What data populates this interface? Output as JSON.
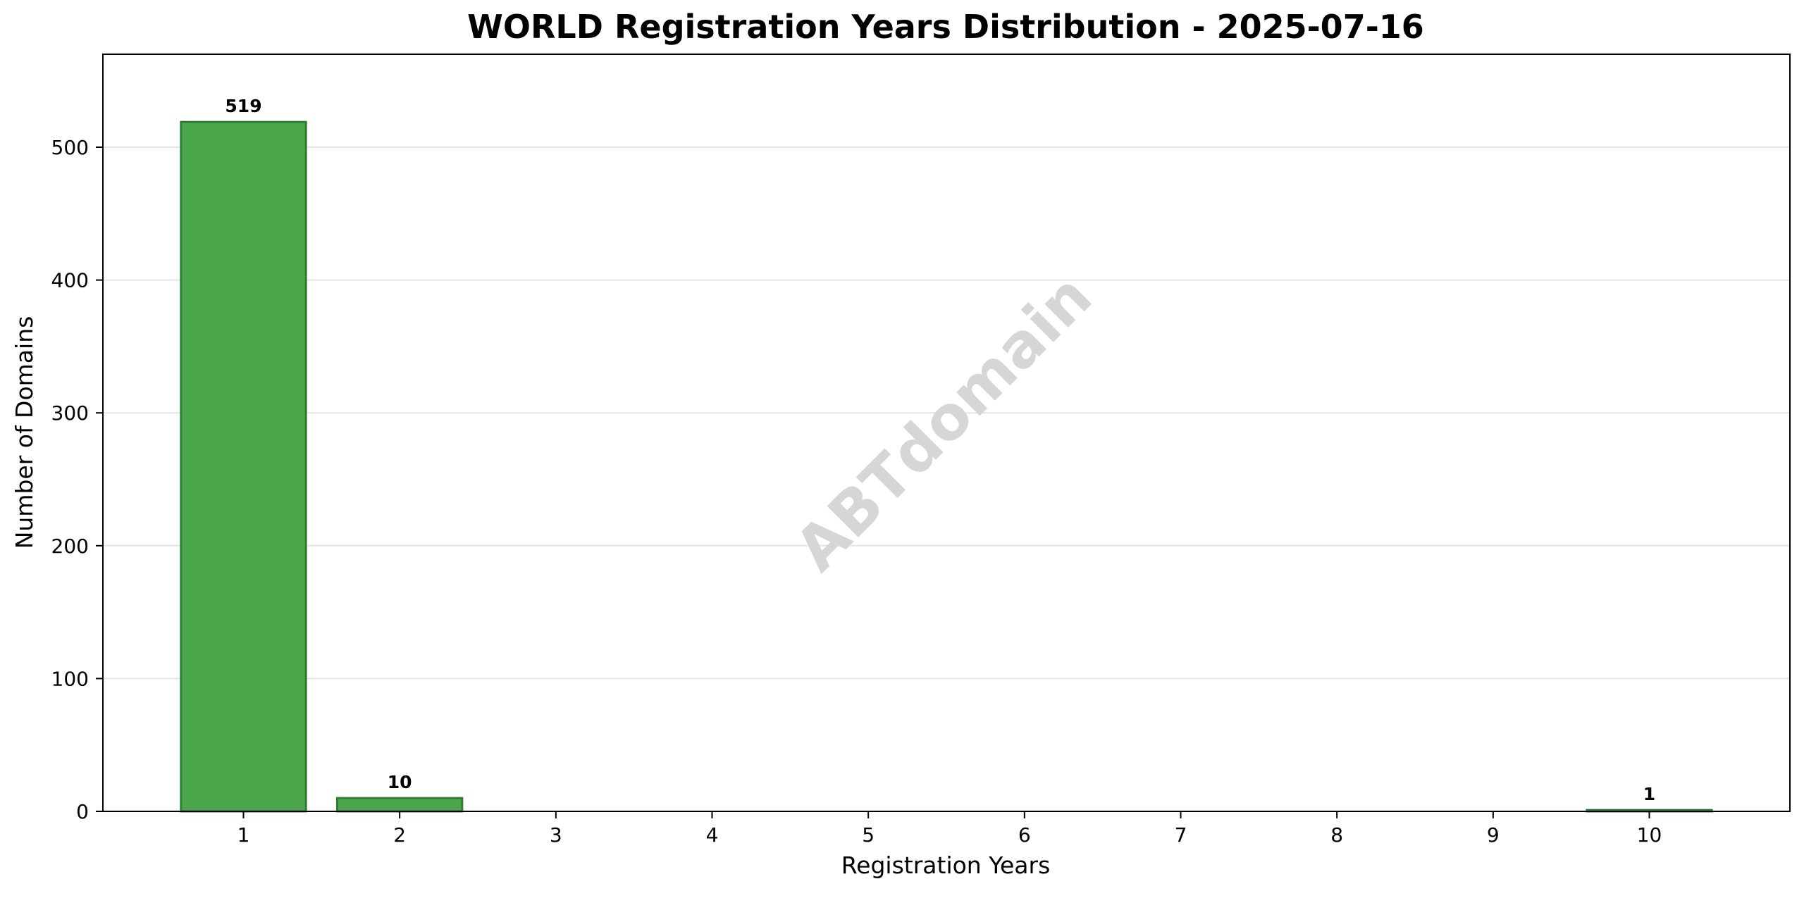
{
  "chart_data": {
    "type": "bar",
    "title": "WORLD Registration Years Distribution - 2025-07-16",
    "xlabel": "Registration Years",
    "ylabel": "Number of Domains",
    "categories": [
      1,
      2,
      3,
      4,
      5,
      6,
      7,
      8,
      9,
      10
    ],
    "values": [
      519,
      10,
      0,
      0,
      0,
      0,
      0,
      0,
      0,
      1
    ],
    "data_labels": [
      "519",
      "10",
      "",
      "",
      "",
      "",
      "",
      "",
      "",
      "1"
    ],
    "xlim": [
      0.1,
      10.9
    ],
    "ylim": [
      0,
      570
    ],
    "yticks": [
      0,
      100,
      200,
      300,
      400,
      500
    ],
    "grid": "y",
    "legend": "none",
    "colors": {
      "bar_fill": "#4CA64C",
      "bar_edge": "#2E7D32",
      "grid": "#E5E5E5",
      "watermark": "#D6D6D6",
      "axis": "#000000"
    },
    "watermark": "ABTdomain"
  }
}
